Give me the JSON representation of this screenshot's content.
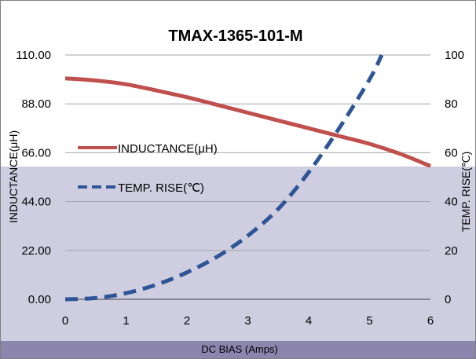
{
  "chart_data": {
    "type": "line",
    "title": "TMAX-1365-101-M",
    "xlabel": "DC BIAS  (Amps)",
    "ylabel_left": "INDUCTANCE(μH)",
    "ylabel_right": "TEMP. RISE(℃)",
    "x_ticks": [
      "0",
      "1",
      "2",
      "3",
      "4",
      "5",
      "6"
    ],
    "y_left_ticks": [
      "0.00",
      "22.00",
      "44.00",
      "66.00",
      "88.00",
      "110.00"
    ],
    "y_right_ticks": [
      "0",
      "20",
      "40",
      "60",
      "80",
      "100"
    ],
    "xlim": [
      0,
      6
    ],
    "ylim_left": [
      0,
      110
    ],
    "ylim_right": [
      0,
      100
    ],
    "grid": true,
    "legend_position": "left-middle",
    "series": [
      {
        "name": "INDUCTANCE(μH)",
        "axis": "left",
        "style": "solid",
        "color": "#c0504d",
        "x": [
          0,
          0.5,
          1,
          1.5,
          2,
          2.5,
          3,
          3.5,
          4,
          4.5,
          5,
          5.5,
          6
        ],
        "y": [
          99.5,
          98.5,
          96.8,
          94.0,
          91.0,
          87.5,
          84.0,
          80.5,
          77.0,
          73.5,
          70.0,
          65.5,
          60.0
        ]
      },
      {
        "name": "TEMP. RISE(℃)",
        "axis": "right",
        "style": "dashed",
        "color": "#2f5597",
        "x": [
          0,
          0.5,
          1,
          1.5,
          2,
          2.5,
          3,
          3.5,
          4,
          4.5,
          5,
          5.2
        ],
        "y": [
          0,
          0.5,
          2.5,
          6,
          11,
          17.5,
          26,
          37,
          52,
          70,
          90,
          100
        ]
      }
    ]
  },
  "colors": {
    "band_fill": "#cfcde0",
    "bottom_bar": "#8c85ad",
    "grid": "#a6a6a6"
  }
}
